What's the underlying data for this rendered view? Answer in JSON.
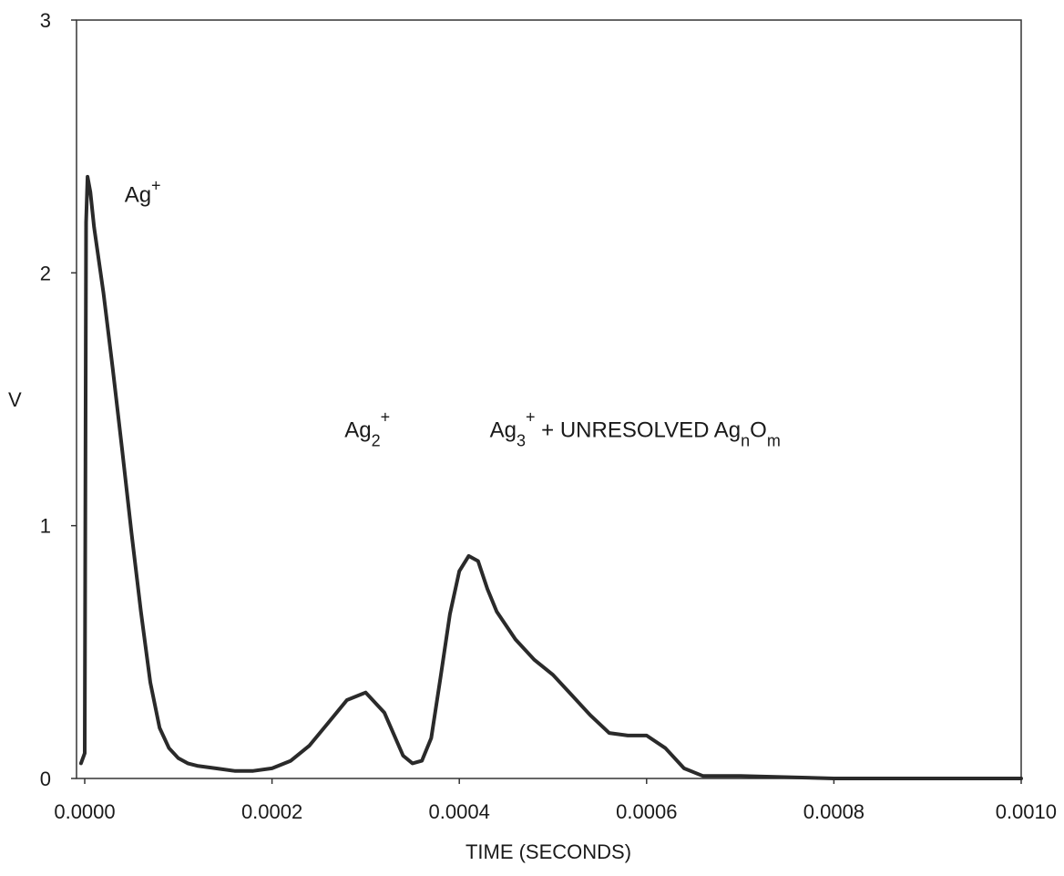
{
  "chart_data": {
    "type": "line",
    "title": "",
    "xlabel": "TIME (SECONDS)",
    "ylabel": "V",
    "xlim": [
      0.0,
      0.001
    ],
    "ylim": [
      0,
      3
    ],
    "x_ticks": [
      "0.0000",
      "0.0002",
      "0.0004",
      "0.0006",
      "0.0008",
      "0.0010"
    ],
    "y_ticks": [
      "0",
      "1",
      "2",
      "3"
    ],
    "grid": false,
    "line_color": "#2a2a2a",
    "series": [
      {
        "x": [
          -4e-06,
          0.0,
          1.5e-06,
          3e-06,
          6e-06,
          1e-05,
          2e-05,
          3e-05,
          4e-05,
          5e-05,
          6e-05,
          7e-05,
          8e-05,
          9e-05,
          0.0001,
          0.00011,
          0.00012,
          0.00014,
          0.00016,
          0.00018,
          0.0002,
          0.00022,
          0.00024,
          0.00026,
          0.00028,
          0.0003,
          0.00032,
          0.00034,
          0.00035,
          0.00036,
          0.00037,
          0.00038,
          0.00039,
          0.0004,
          0.00041,
          0.00042,
          0.00043,
          0.00044,
          0.00046,
          0.00048,
          0.0005,
          0.00052,
          0.00054,
          0.00056,
          0.00058,
          0.0006,
          0.00062,
          0.00064,
          0.00066,
          0.0007,
          0.0008,
          0.0009,
          0.001
        ],
        "y": [
          0.06,
          0.1,
          2.2,
          2.38,
          2.32,
          2.18,
          1.92,
          1.62,
          1.3,
          0.97,
          0.66,
          0.38,
          0.2,
          0.12,
          0.08,
          0.06,
          0.05,
          0.04,
          0.03,
          0.03,
          0.04,
          0.07,
          0.13,
          0.22,
          0.31,
          0.34,
          0.26,
          0.09,
          0.06,
          0.07,
          0.16,
          0.4,
          0.65,
          0.82,
          0.88,
          0.86,
          0.75,
          0.66,
          0.55,
          0.47,
          0.41,
          0.33,
          0.25,
          0.18,
          0.17,
          0.17,
          0.12,
          0.04,
          0.01,
          0.01,
          0.0,
          0.0,
          0.0
        ]
      }
    ],
    "annotations": {
      "ag1": {
        "base": "Ag",
        "sup": "+",
        "x": 4.25e-05,
        "y": 2.28
      },
      "ag2": {
        "base": "Ag",
        "sub": "2",
        "sup": "+",
        "x": 0.0002775,
        "y": 1.35
      },
      "ag3": {
        "base": "Ag",
        "sub": "3",
        "sup": "+",
        "rest": " + UNRESOLVED Ag",
        "sub2": "n",
        "base2": "O",
        "sub3": "m",
        "x": 0.0004325,
        "y": 1.35
      }
    }
  }
}
